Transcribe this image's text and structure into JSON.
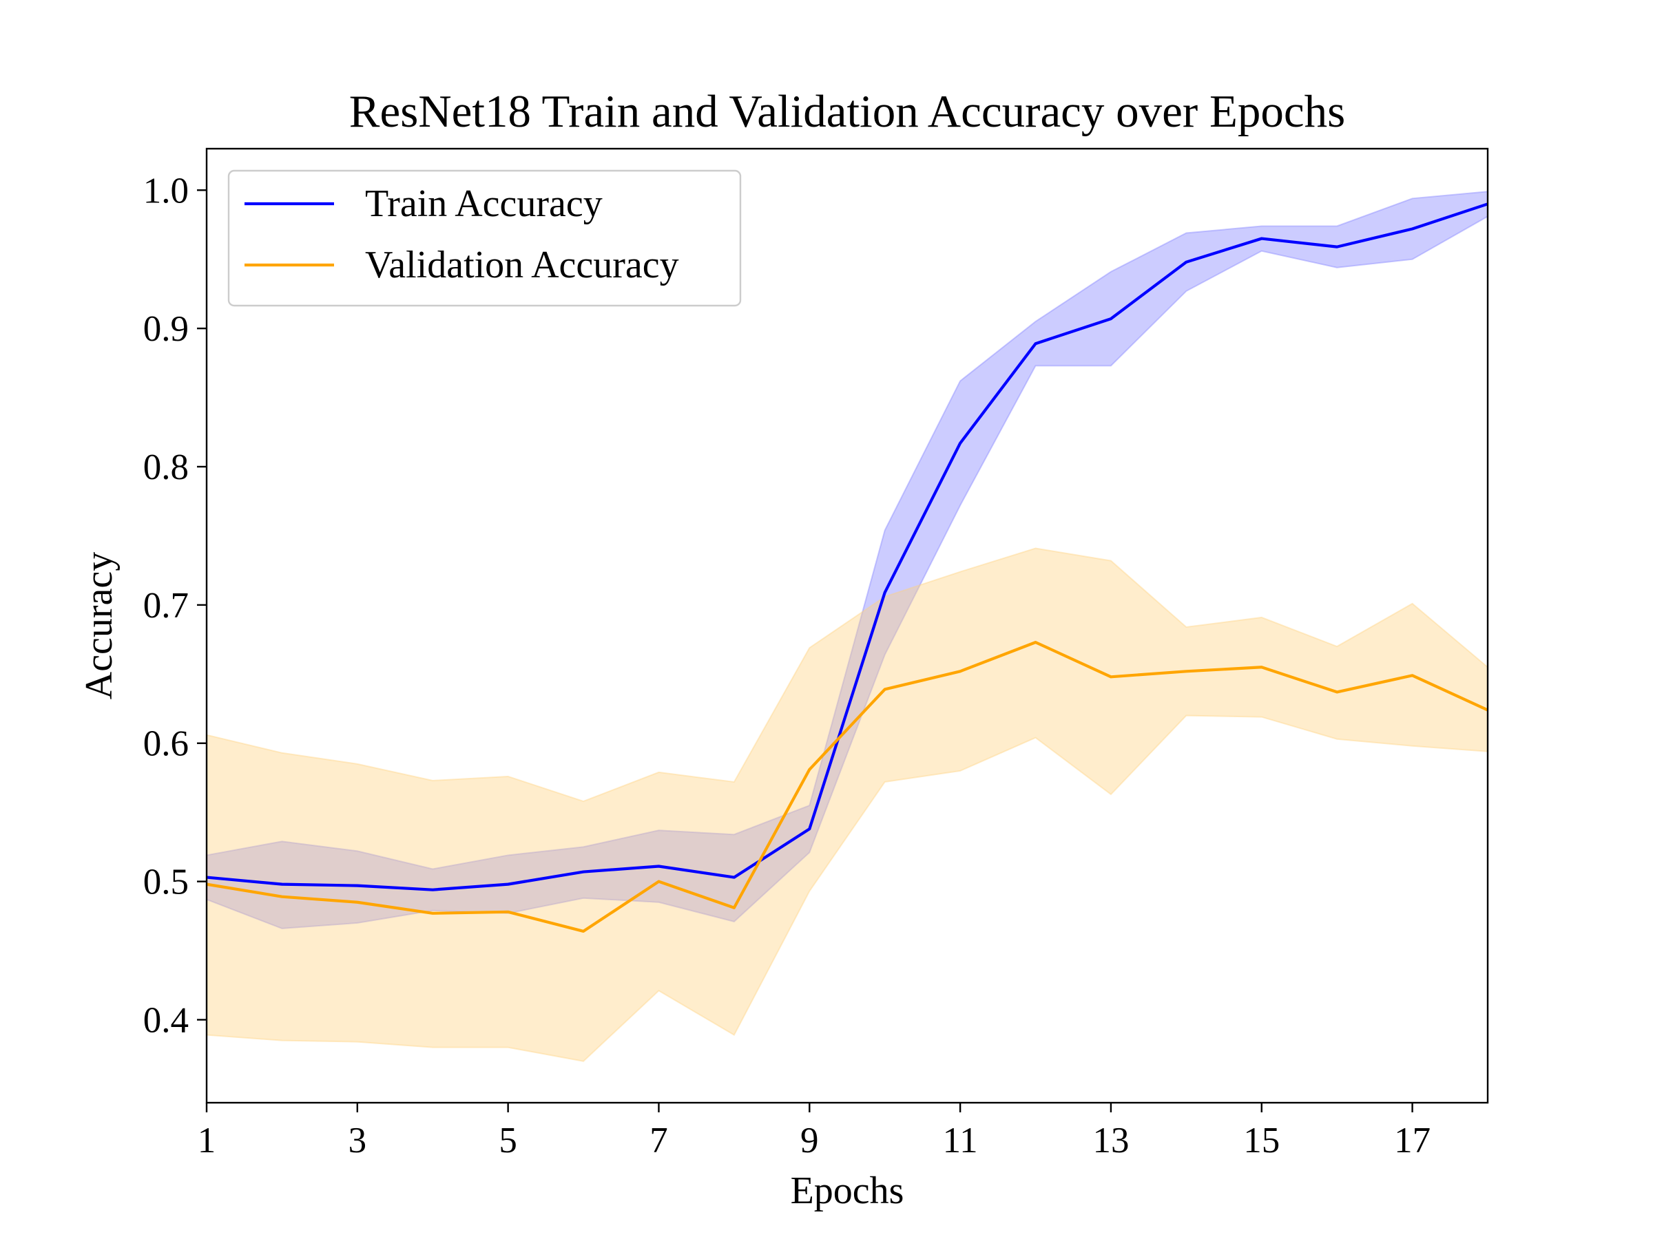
{
  "chart_data": {
    "type": "line",
    "title": "ResNet18 Train and Validation Accuracy over Epochs",
    "xlabel": "Epochs",
    "ylabel": "Accuracy",
    "xlim": [
      1,
      18
    ],
    "ylim": [
      0.34,
      1.03
    ],
    "xticks": [
      1,
      3,
      5,
      7,
      9,
      11,
      13,
      15,
      17
    ],
    "yticks": [
      0.4,
      0.5,
      0.6,
      0.7,
      0.8,
      0.9,
      1.0
    ],
    "ytick_labels": [
      "0.4",
      "0.5",
      "0.6",
      "0.7",
      "0.8",
      "0.9",
      "1.0"
    ],
    "grid": false,
    "legend_position": "top-left",
    "x": [
      1,
      2,
      3,
      4,
      5,
      6,
      7,
      8,
      9,
      10,
      11,
      12,
      13,
      14,
      15,
      16,
      17,
      18
    ],
    "series": [
      {
        "name": "Train Accuracy",
        "color": "#0000ff",
        "band_color": "#8080ff",
        "values": [
          0.503,
          0.498,
          0.497,
          0.494,
          0.498,
          0.507,
          0.511,
          0.503,
          0.538,
          0.709,
          0.817,
          0.889,
          0.907,
          0.948,
          0.965,
          0.959,
          0.972,
          0.99
        ],
        "upper": [
          0.519,
          0.529,
          0.522,
          0.509,
          0.519,
          0.525,
          0.537,
          0.534,
          0.555,
          0.754,
          0.862,
          0.905,
          0.941,
          0.969,
          0.974,
          0.974,
          0.994,
          0.999
        ],
        "lower": [
          0.487,
          0.466,
          0.47,
          0.479,
          0.477,
          0.488,
          0.485,
          0.471,
          0.521,
          0.664,
          0.772,
          0.873,
          0.873,
          0.927,
          0.956,
          0.944,
          0.95,
          0.981
        ]
      },
      {
        "name": "Validation Accuracy",
        "color": "#ffa500",
        "band_color": "#ffd27f",
        "values": [
          0.498,
          0.489,
          0.485,
          0.477,
          0.478,
          0.464,
          0.5,
          0.481,
          0.581,
          0.639,
          0.652,
          0.673,
          0.648,
          0.652,
          0.655,
          0.637,
          0.649,
          0.624
        ],
        "upper": [
          0.606,
          0.593,
          0.585,
          0.573,
          0.576,
          0.558,
          0.579,
          0.572,
          0.669,
          0.706,
          0.724,
          0.741,
          0.732,
          0.684,
          0.691,
          0.67,
          0.701,
          0.655
        ],
        "lower": [
          0.389,
          0.385,
          0.384,
          0.38,
          0.38,
          0.37,
          0.421,
          0.389,
          0.493,
          0.572,
          0.58,
          0.604,
          0.563,
          0.62,
          0.619,
          0.603,
          0.598,
          0.594
        ]
      }
    ]
  }
}
